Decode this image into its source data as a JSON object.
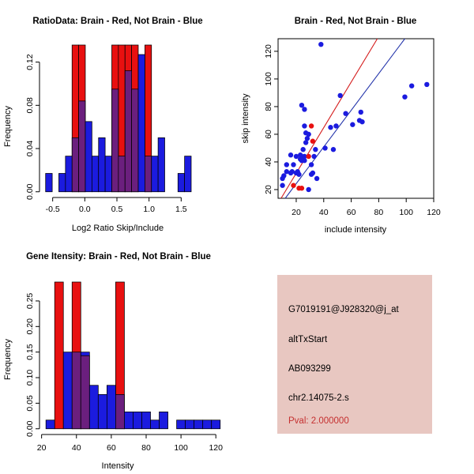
{
  "figure": {
    "bg": "#FFFFFF"
  },
  "colors": {
    "brain_red": "#E81010",
    "not_brain_blue": "#1B1BDF",
    "overlap_purple": "#6B1F7E",
    "fit_line_red": "#D41A1A",
    "fit_line_blue": "#2233AA",
    "axis": "#000000"
  },
  "chart_data": [
    {
      "type": "bar",
      "variant": "overlaid-histogram",
      "title": "RatioData: Brain - Red, Not Brain - Blue",
      "xlabel": "Log2 Ratio Skip/Include",
      "ylabel": "Frequency",
      "xlim": [
        -0.705,
        1.742
      ],
      "ylim": [
        -0.0053,
        0.1358
      ],
      "xticks": [
        -0.5,
        0.0,
        0.5,
        1.0,
        1.5
      ],
      "xtick_labels": [
        "-0.5",
        "0.0",
        "0.5",
        "1.0",
        "1.5"
      ],
      "yticks": [
        0,
        0.04,
        0.08,
        0.12
      ],
      "ytick_labels": [
        "0.00",
        "0.04",
        "0.08",
        "0.12"
      ],
      "bin_width": 0.103,
      "legend_note": "Brain = red, Not Brain = blue, overlap = purple; red bars clipped at plot top",
      "blue_bars": [
        [
          -0.61,
          0.017
        ],
        [
          -0.404,
          0.017
        ],
        [
          -0.301,
          0.033
        ],
        [
          -0.198,
          0.05
        ],
        [
          -0.095,
          0.084
        ],
        [
          0.008,
          0.065
        ],
        [
          0.111,
          0.033
        ],
        [
          0.214,
          0.05
        ],
        [
          0.317,
          0.033
        ],
        [
          0.42,
          0.095
        ],
        [
          0.523,
          0.033
        ],
        [
          0.626,
          0.112
        ],
        [
          0.729,
          0.095
        ],
        [
          0.832,
          0.127
        ],
        [
          0.935,
          0.033
        ],
        [
          1.038,
          0.033
        ],
        [
          1.141,
          0.05
        ],
        [
          1.45,
          0.017
        ],
        [
          1.553,
          0.033
        ]
      ],
      "red_bars": [
        [
          -0.198,
          0.14
        ],
        [
          -0.095,
          0.14
        ],
        [
          0.42,
          0.14
        ],
        [
          0.523,
          0.14
        ],
        [
          0.626,
          0.14
        ],
        [
          0.729,
          0.14
        ],
        [
          0.935,
          0.14
        ]
      ]
    },
    {
      "type": "scatter",
      "title": "Brain - Red, Not Brain - Blue",
      "xlabel": "include intensity",
      "ylabel": "skip intensity",
      "xlim": [
        6.8,
        120.0
      ],
      "ylim": [
        13.7,
        129.1
      ],
      "xticks": [
        20,
        40,
        60,
        80,
        100,
        120
      ],
      "xtick_labels": [
        "20",
        "40",
        "60",
        "80",
        "100",
        "120"
      ],
      "yticks": [
        20,
        40,
        60,
        80,
        100,
        120
      ],
      "ytick_labels": [
        "20",
        "40",
        "60",
        "80",
        "100",
        "120"
      ],
      "blue_points": [
        [
          38,
          125
        ],
        [
          52,
          88
        ],
        [
          99,
          87
        ],
        [
          104,
          95
        ],
        [
          115,
          96
        ],
        [
          24,
          81
        ],
        [
          26,
          78
        ],
        [
          56,
          75
        ],
        [
          67,
          76
        ],
        [
          61,
          67
        ],
        [
          66,
          70
        ],
        [
          68,
          69
        ],
        [
          45,
          65
        ],
        [
          49,
          66
        ],
        [
          26,
          66
        ],
        [
          27,
          61
        ],
        [
          29,
          60
        ],
        [
          28,
          57
        ],
        [
          27,
          54
        ],
        [
          34,
          49
        ],
        [
          41,
          50
        ],
        [
          47,
          49
        ],
        [
          25,
          49
        ],
        [
          16,
          45
        ],
        [
          20,
          44
        ],
        [
          23,
          45
        ],
        [
          24,
          44
        ],
        [
          26,
          44
        ],
        [
          25,
          42
        ],
        [
          23,
          42
        ],
        [
          26,
          41
        ],
        [
          24,
          41
        ],
        [
          33,
          44
        ],
        [
          13,
          38
        ],
        [
          18,
          38
        ],
        [
          31,
          38
        ],
        [
          13,
          33
        ],
        [
          16,
          32
        ],
        [
          17,
          33
        ],
        [
          20,
          32
        ],
        [
          21,
          33
        ],
        [
          22,
          31
        ],
        [
          11,
          30
        ],
        [
          10,
          28
        ],
        [
          31,
          31
        ],
        [
          32,
          32
        ],
        [
          35,
          28
        ],
        [
          10,
          23
        ],
        [
          29,
          20
        ]
      ],
      "red_points": [
        [
          31,
          66
        ],
        [
          32,
          55
        ],
        [
          29,
          44
        ],
        [
          18,
          23
        ],
        [
          22,
          21
        ],
        [
          24,
          21
        ]
      ],
      "lines": [
        {
          "name": "brain-fit-line",
          "color": "red",
          "x1": 9,
          "y1": 13.7,
          "x2": 79,
          "y2": 129.1
        },
        {
          "name": "not-brain-fit-line",
          "color": "blue",
          "x1": 12,
          "y1": 13.7,
          "x2": 99,
          "y2": 129.1
        }
      ]
    },
    {
      "type": "bar",
      "variant": "overlaid-histogram",
      "title": "Gene Itensity: Brain - Red, Not Brain - Blue",
      "xlabel": "Intensity",
      "ylabel": "Frequency",
      "xlim": [
        18.8,
        126.7
      ],
      "ylim": [
        -0.0112,
        0.287
      ],
      "xticks": [
        20,
        40,
        60,
        80,
        100,
        120
      ],
      "xtick_labels": [
        "20",
        "40",
        "60",
        "80",
        "100",
        "120"
      ],
      "yticks": [
        0,
        0.05,
        0.1,
        0.15,
        0.2,
        0.25
      ],
      "ytick_labels": [
        "0.00",
        "0.05",
        "0.10",
        "0.15",
        "0.20",
        "0.25"
      ],
      "bin_width": 5,
      "legend_note": "Brain = red, Not Brain = blue, overlap = purple; tall red bars clipped at plot top",
      "blue_bars": [
        [
          22.5,
          0.017
        ],
        [
          32.5,
          0.15
        ],
        [
          37.5,
          0.15
        ],
        [
          42.5,
          0.15
        ],
        [
          47.5,
          0.085
        ],
        [
          52.5,
          0.067
        ],
        [
          57.5,
          0.085
        ],
        [
          62.5,
          0.067
        ],
        [
          67.5,
          0.033
        ],
        [
          72.5,
          0.033
        ],
        [
          77.5,
          0.033
        ],
        [
          82.5,
          0.017
        ],
        [
          87.5,
          0.033
        ],
        [
          97.5,
          0.017
        ],
        [
          102.5,
          0.017
        ],
        [
          107.5,
          0.017
        ],
        [
          112.5,
          0.017
        ],
        [
          117.5,
          0.017
        ]
      ],
      "red_bars": [
        [
          27.5,
          0.3
        ],
        [
          37.5,
          0.3
        ],
        [
          42.5,
          0.143
        ],
        [
          62.5,
          0.3
        ]
      ]
    }
  ],
  "info_panel": {
    "bg": "#E8C7C1",
    "lines": [
      "G7019191@J928320@j_at",
      "altTxStart",
      "AB093299",
      "chr2.14075-2.s"
    ],
    "pval_line": "Pval: 2.000000",
    "pval_color": "#C53030"
  }
}
